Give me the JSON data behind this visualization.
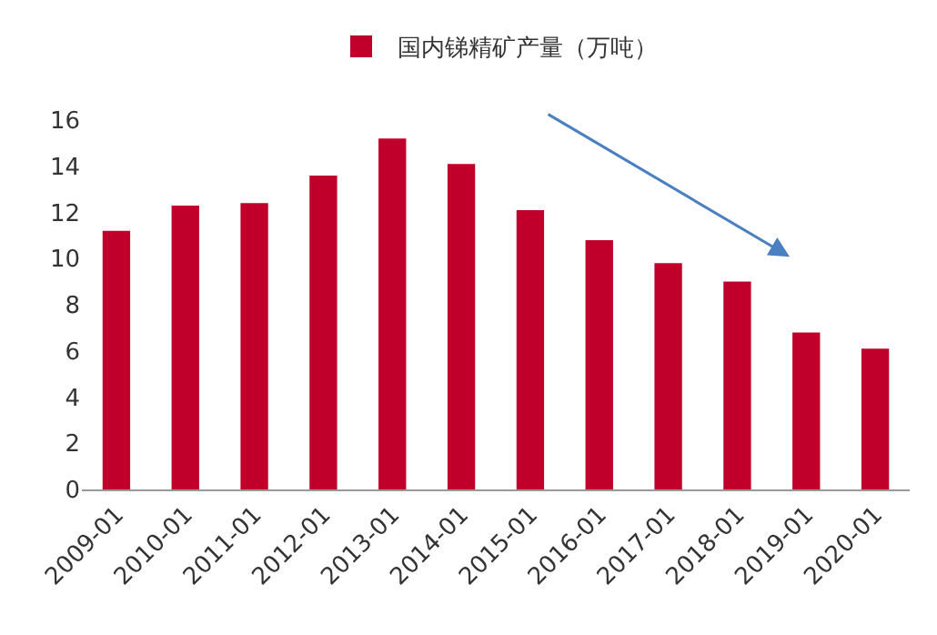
{
  "chart_data": {
    "type": "bar",
    "categories": [
      "2009-01",
      "2010-01",
      "2011-01",
      "2012-01",
      "2013-01",
      "2014-01",
      "2015-01",
      "2016-01",
      "2017-01",
      "2018-01",
      "2019-01",
      "2020-01"
    ],
    "series": [
      {
        "name": "国内锑精矿产量（万吨）",
        "color": "#c0002a",
        "values": [
          11.2,
          12.3,
          12.4,
          13.6,
          15.2,
          14.1,
          12.1,
          10.8,
          9.8,
          9.0,
          6.8,
          6.1
        ]
      }
    ],
    "ylim": [
      0,
      16
    ],
    "yticks": [
      0,
      2,
      4,
      6,
      8,
      10,
      12,
      14,
      16
    ],
    "grid": false,
    "legend": "top"
  }
}
